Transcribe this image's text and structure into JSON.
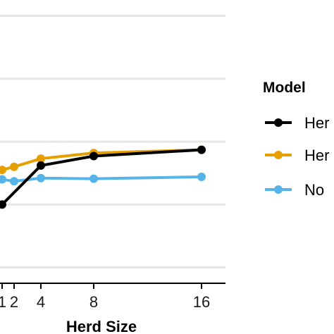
{
  "chart_data": {
    "type": "line",
    "xlabel": "Herd Size",
    "ylabel": "",
    "title": "",
    "x_ticks": [
      1,
      2,
      4,
      8,
      16
    ],
    "xlim": [
      0.9,
      18
    ],
    "ylim": [
      -1.05,
      3.05
    ],
    "y_gridlines": [
      -1,
      0,
      1,
      2,
      3
    ],
    "grid": "horizontal",
    "legend": {
      "title": "Model",
      "placement": "right",
      "entries": [
        "Her",
        "Her",
        "No"
      ]
    },
    "series": [
      {
        "label": "Her",
        "color": "#000000",
        "x": [
          1,
          4,
          8,
          16
        ],
        "y": [
          0,
          0.62,
          0.77,
          0.87
        ]
      },
      {
        "label": "Her",
        "color": "#E69F00",
        "x": [
          1,
          2,
          4,
          8,
          16
        ],
        "y": [
          0.55,
          0.6,
          0.73,
          0.82,
          0.87
        ]
      },
      {
        "label": "No",
        "color": "#56B4E9",
        "x": [
          1,
          2,
          4,
          8,
          16
        ],
        "y": [
          0.4,
          0.37,
          0.42,
          0.41,
          0.44
        ]
      }
    ]
  }
}
